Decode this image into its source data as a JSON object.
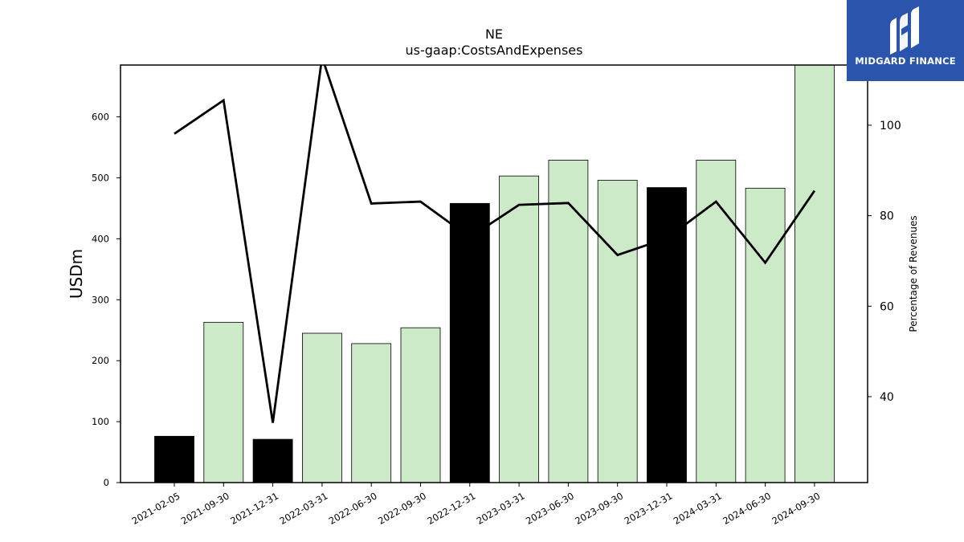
{
  "title": "NE",
  "subtitle": "us-gaap:CostsAndExpenses",
  "logo": {
    "brand": "MIDGARD FINANCE",
    "icon": "midgard-logo-icon"
  },
  "colors": {
    "bar_light": "#cdeac8",
    "bar_dark": "#000000",
    "line": "#000000",
    "logo_bg": "#2b55ad"
  },
  "chart_data": {
    "type": "bar",
    "title": "NE",
    "subtitle": "us-gaap:CostsAndExpenses",
    "ylabel": "USDm",
    "y2label": "Percentage of Revenues",
    "ylim": [
      0,
      685
    ],
    "y2lim": [
      21,
      113.3
    ],
    "yticks": [
      0,
      100,
      200,
      300,
      400,
      500,
      600
    ],
    "y2ticks": [
      40,
      60,
      80,
      100
    ],
    "categories": [
      "2021-02-05",
      "2021-09-30",
      "2021-12-31",
      "2022-03-31",
      "2022-06-30",
      "2022-09-30",
      "2022-12-31",
      "2023-03-31",
      "2023-06-30",
      "2023-09-30",
      "2023-12-31",
      "2024-03-31",
      "2024-06-30",
      "2024-09-30"
    ],
    "series": [
      {
        "type": "bar",
        "values": [
          76,
          263,
          71,
          245,
          228,
          254,
          458,
          503,
          529,
          496,
          484,
          529,
          483,
          685
        ],
        "highlight": [
          true,
          false,
          true,
          false,
          false,
          false,
          true,
          false,
          false,
          false,
          true,
          false,
          false,
          false
        ]
      },
      {
        "type": "line",
        "axis": "right",
        "values": [
          98.1,
          105.5,
          34.2,
          115.0,
          82.7,
          83.1,
          75.2,
          82.4,
          82.8,
          71.3,
          75.0,
          83.1,
          69.6,
          85.5
        ]
      }
    ],
    "grid": false,
    "legend": "none"
  }
}
